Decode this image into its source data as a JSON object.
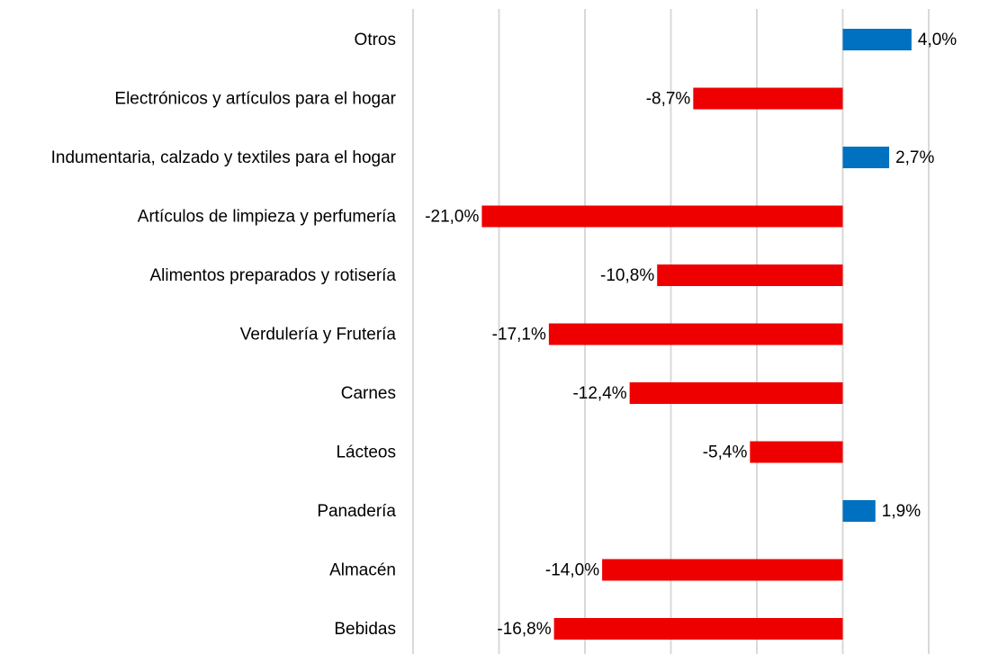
{
  "chart_data": {
    "type": "hbar",
    "categories": [
      "Otros",
      "Electrónicos y artículos para el hogar",
      "Indumentaria, calzado y textiles para el hogar",
      "Artículos de limpieza y perfumería",
      "Alimentos preparados y rotisería",
      "Verdulería y Frutería",
      "Carnes",
      "Lácteos",
      "Panadería",
      "Almacén",
      "Bebidas"
    ],
    "values": [
      4.0,
      -8.7,
      2.7,
      -21.0,
      -10.8,
      -17.1,
      -12.4,
      -5.4,
      1.9,
      -14.0,
      -16.8
    ],
    "value_labels": [
      "4,0%",
      "-8,7%",
      "2,7%",
      "-21,0%",
      "-10,8%",
      "-17,1%",
      "-12,4%",
      "-5,4%",
      "1,9%",
      "-14,0%",
      "-16,8%"
    ],
    "positive_color": "#0070c0",
    "negative_color": "#ee0000",
    "xlim": [
      -25,
      5
    ],
    "xticks": [
      -25,
      -20,
      -15,
      -10,
      -5,
      0,
      5
    ],
    "grid": true
  }
}
